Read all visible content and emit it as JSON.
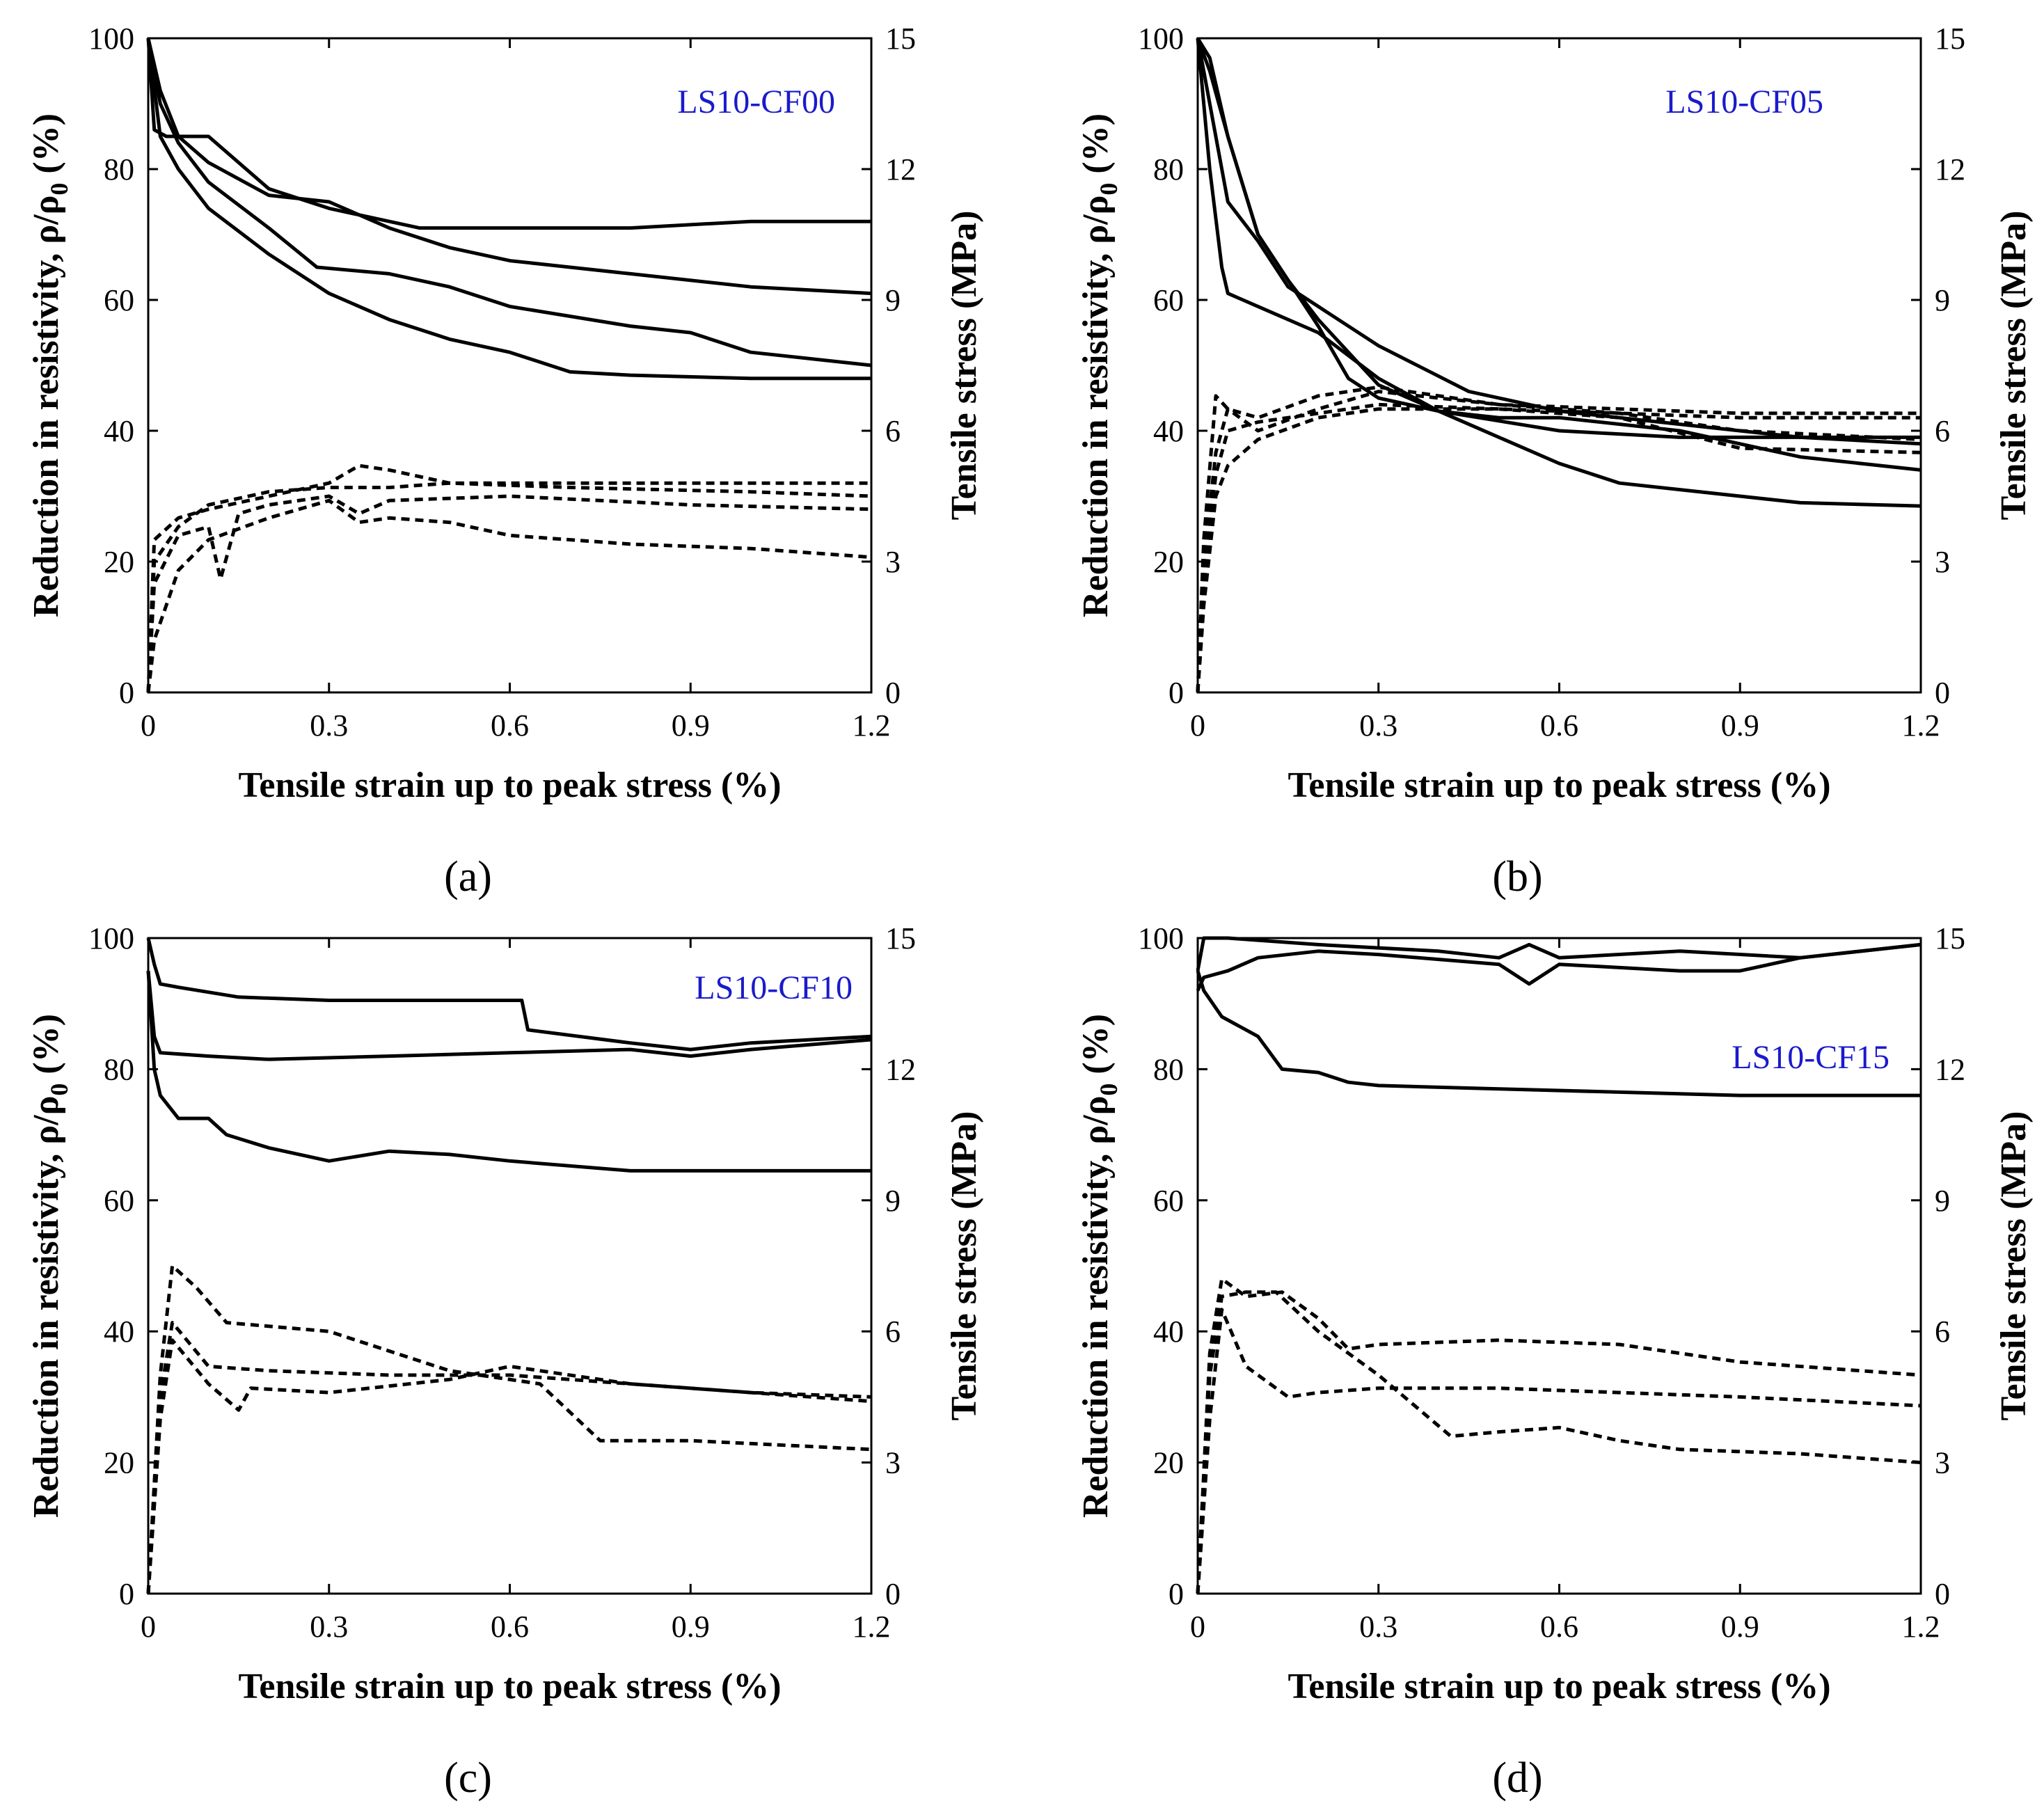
{
  "chart_data": [
    {
      "type": "line",
      "panel_tag": "(a)",
      "specimen_label": "LS10-CF00",
      "xlabel": "Tensile strain up to peak stress (%)",
      "ylabel_left": "Reduction in resistivity, ρ/ρ",
      "ylabel_left_sub": "0",
      "ylabel_left_tail": " (%)",
      "ylabel_right": "Tensile stress (MPa)",
      "xlim": [
        0,
        1.2
      ],
      "ylim_left": [
        0,
        100
      ],
      "ylim_right": [
        0,
        15
      ],
      "xticks": [
        "0",
        "0.3",
        "0.6",
        "0.9",
        "1.2"
      ],
      "yticks_left": [
        "0",
        "20",
        "40",
        "60",
        "80",
        "100"
      ],
      "yticks_right": [
        "0",
        "3",
        "6",
        "9",
        "12",
        "15"
      ],
      "series": [
        {
          "name": "resistivity-1",
          "style": "solid",
          "axis": "left",
          "x": [
            0,
            0.01,
            0.03,
            0.1,
            0.2,
            0.3,
            0.45,
            0.6,
            0.8,
            1.0,
            1.2
          ],
          "y": [
            100,
            86,
            85,
            85,
            77,
            74,
            71,
            71,
            71,
            72,
            72
          ]
        },
        {
          "name": "resistivity-2",
          "style": "solid",
          "axis": "left",
          "x": [
            0,
            0.02,
            0.05,
            0.1,
            0.2,
            0.3,
            0.4,
            0.5,
            0.6,
            0.8,
            1.0,
            1.2
          ],
          "y": [
            100,
            92,
            85,
            81,
            76,
            75,
            71,
            68,
            66,
            64,
            62,
            61
          ]
        },
        {
          "name": "resistivity-3",
          "style": "solid",
          "axis": "left",
          "x": [
            0,
            0.02,
            0.05,
            0.1,
            0.2,
            0.28,
            0.4,
            0.5,
            0.6,
            0.8,
            0.9,
            1.0,
            1.2
          ],
          "y": [
            100,
            90,
            84,
            78,
            71,
            65,
            64,
            62,
            59,
            56,
            55,
            52,
            50
          ]
        },
        {
          "name": "resistivity-4",
          "style": "solid",
          "axis": "left",
          "x": [
            0,
            0.02,
            0.05,
            0.1,
            0.2,
            0.3,
            0.4,
            0.5,
            0.6,
            0.7,
            0.8,
            1.0,
            1.2
          ],
          "y": [
            100,
            85,
            80,
            74,
            67,
            61,
            57,
            54,
            52,
            49,
            48.5,
            48,
            48
          ]
        },
        {
          "name": "stress-1",
          "style": "dash",
          "axis": "right",
          "x": [
            0,
            0.01,
            0.05,
            0.1,
            0.2,
            0.3,
            0.35,
            0.4,
            0.5,
            0.7,
            1.0,
            1.2
          ],
          "y": [
            0,
            3.5,
            4.0,
            4.2,
            4.5,
            4.8,
            5.2,
            5.1,
            4.8,
            4.7,
            4.6,
            4.5
          ]
        },
        {
          "name": "stress-2",
          "style": "dash",
          "axis": "right",
          "x": [
            0,
            0.01,
            0.05,
            0.1,
            0.2,
            0.3,
            0.4,
            0.5,
            0.7,
            1.0,
            1.2
          ],
          "y": [
            0,
            3.0,
            3.8,
            4.3,
            4.6,
            4.7,
            4.7,
            4.8,
            4.8,
            4.8,
            4.8
          ]
        },
        {
          "name": "stress-3",
          "style": "dash",
          "axis": "right",
          "x": [
            0,
            0.01,
            0.05,
            0.1,
            0.12,
            0.15,
            0.2,
            0.3,
            0.35,
            0.4,
            0.6,
            0.9,
            1.2
          ],
          "y": [
            0,
            2.5,
            3.6,
            3.8,
            2.6,
            4.1,
            4.3,
            4.5,
            4.1,
            4.4,
            4.5,
            4.3,
            4.2
          ]
        },
        {
          "name": "stress-4",
          "style": "dash",
          "axis": "right",
          "x": [
            0,
            0.01,
            0.05,
            0.1,
            0.2,
            0.3,
            0.35,
            0.4,
            0.5,
            0.6,
            0.8,
            1.0,
            1.2
          ],
          "y": [
            0,
            1.2,
            2.8,
            3.5,
            4.0,
            4.4,
            3.9,
            4.0,
            3.9,
            3.6,
            3.4,
            3.3,
            3.1
          ]
        }
      ]
    },
    {
      "type": "line",
      "panel_tag": "(b)",
      "specimen_label": "LS10-CF05",
      "xlabel": "Tensile strain up to peak stress (%)",
      "ylabel_left": "Reduction in resistivity, ρ/ρ",
      "ylabel_left_sub": "0",
      "ylabel_left_tail": " (%)",
      "ylabel_right": "Tensile stress (MPa)",
      "xlim": [
        0,
        1.2
      ],
      "ylim_left": [
        0,
        100
      ],
      "ylim_right": [
        0,
        15
      ],
      "xticks": [
        "0",
        "0.3",
        "0.6",
        "0.9",
        "1.2"
      ],
      "yticks_left": [
        "0",
        "20",
        "40",
        "60",
        "80",
        "100"
      ],
      "yticks_right": [
        "0",
        "3",
        "6",
        "9",
        "12",
        "15"
      ],
      "series": [
        {
          "name": "resistivity-1",
          "style": "solid",
          "axis": "left",
          "x": [
            0,
            0.02,
            0.05,
            0.1,
            0.15,
            0.2,
            0.3,
            0.45,
            0.6,
            0.8,
            1.0,
            1.2
          ],
          "y": [
            100,
            90,
            75,
            69,
            62,
            59,
            53,
            46,
            43,
            41,
            39,
            38
          ]
        },
        {
          "name": "resistivity-2",
          "style": "solid",
          "axis": "left",
          "x": [
            0,
            0.02,
            0.04,
            0.05,
            0.1,
            0.2,
            0.3,
            0.4,
            0.6,
            0.8,
            1.0,
            1.2
          ],
          "y": [
            100,
            80,
            65,
            61,
            59,
            55,
            48,
            43,
            40,
            39,
            39,
            39
          ]
        },
        {
          "name": "resistivity-3",
          "style": "solid",
          "axis": "left",
          "x": [
            0,
            0.02,
            0.05,
            0.1,
            0.15,
            0.2,
            0.25,
            0.3,
            0.4,
            0.5,
            0.6,
            0.8,
            1.0,
            1.2
          ],
          "y": [
            100,
            95,
            85,
            70,
            63,
            56,
            48,
            45,
            43,
            42,
            42,
            40,
            36,
            34
          ]
        },
        {
          "name": "resistivity-4",
          "style": "solid",
          "axis": "left",
          "x": [
            0,
            0.02,
            0.05,
            0.1,
            0.15,
            0.2,
            0.25,
            0.3,
            0.4,
            0.5,
            0.6,
            0.7,
            0.8,
            1.0,
            1.2
          ],
          "y": [
            100,
            97,
            85,
            70,
            63,
            57,
            52,
            47,
            43,
            39,
            35,
            32,
            31,
            29,
            28.5
          ]
        },
        {
          "name": "stress-1",
          "style": "dash",
          "axis": "right",
          "x": [
            0,
            0.01,
            0.03,
            0.05,
            0.1,
            0.2,
            0.3,
            0.5,
            0.7,
            0.9,
            1.2
          ],
          "y": [
            0,
            3.5,
            6.8,
            6.5,
            6.3,
            6.8,
            7.0,
            6.6,
            6.5,
            6.4,
            6.4
          ]
        },
        {
          "name": "stress-2",
          "style": "dash",
          "axis": "right",
          "x": [
            0,
            0.01,
            0.03,
            0.05,
            0.1,
            0.2,
            0.3,
            0.5,
            0.7,
            0.9,
            1.2
          ],
          "y": [
            0,
            3.0,
            5.5,
            6.5,
            6.0,
            6.5,
            6.9,
            6.6,
            6.4,
            6.3,
            6.3
          ]
        },
        {
          "name": "stress-3",
          "style": "dash",
          "axis": "right",
          "x": [
            0,
            0.01,
            0.03,
            0.05,
            0.1,
            0.2,
            0.3,
            0.5,
            0.7,
            0.9,
            1.2
          ],
          "y": [
            0,
            2.5,
            5.0,
            6.0,
            6.2,
            6.4,
            6.6,
            6.5,
            6.4,
            6.0,
            5.8
          ]
        },
        {
          "name": "stress-4",
          "style": "dash",
          "axis": "right",
          "x": [
            0,
            0.01,
            0.03,
            0.05,
            0.1,
            0.2,
            0.3,
            0.5,
            0.7,
            0.9,
            1.2
          ],
          "y": [
            0,
            2.0,
            4.5,
            5.2,
            5.8,
            6.3,
            6.5,
            6.5,
            6.3,
            5.6,
            5.5
          ]
        }
      ]
    },
    {
      "type": "line",
      "panel_tag": "(c)",
      "specimen_label": "LS10-CF10",
      "xlabel": "Tensile strain up to peak stress (%)",
      "ylabel_left": "Reduction in resistivity, ρ/ρ",
      "ylabel_left_sub": "0",
      "ylabel_left_tail": " (%)",
      "ylabel_right": "Tensile stress (MPa)",
      "xlim": [
        0,
        1.2
      ],
      "ylim_left": [
        0,
        100
      ],
      "ylim_right": [
        0,
        15
      ],
      "xticks": [
        "0",
        "0.3",
        "0.6",
        "0.9",
        "1.2"
      ],
      "yticks_left": [
        "0",
        "20",
        "40",
        "60",
        "80",
        "100"
      ],
      "yticks_right": [
        "0",
        "3",
        "6",
        "9",
        "12",
        "15"
      ],
      "series": [
        {
          "name": "resistivity-1",
          "style": "solid",
          "axis": "left",
          "x": [
            0,
            0.01,
            0.02,
            0.05,
            0.15,
            0.3,
            0.5,
            0.62,
            0.63,
            0.8,
            0.9,
            1.0,
            1.2
          ],
          "y": [
            100,
            96,
            93,
            92.5,
            91,
            90.5,
            90.5,
            90.5,
            86,
            84,
            83,
            84,
            85
          ]
        },
        {
          "name": "resistivity-2",
          "style": "solid",
          "axis": "left",
          "x": [
            0,
            0.01,
            0.02,
            0.1,
            0.2,
            0.4,
            0.6,
            0.8,
            0.9,
            1.0,
            1.2
          ],
          "y": [
            95,
            85,
            82.5,
            82,
            81.5,
            82,
            82.5,
            83,
            82,
            83,
            84.5
          ]
        },
        {
          "name": "resistivity-3",
          "style": "solid",
          "axis": "left",
          "x": [
            0,
            0.01,
            0.02,
            0.05,
            0.1,
            0.13,
            0.2,
            0.3,
            0.4,
            0.5,
            0.6,
            0.8,
            1.0,
            1.2
          ],
          "y": [
            95,
            80,
            76,
            72.5,
            72.5,
            70,
            68,
            66,
            67.5,
            67,
            66,
            64.5,
            64.5,
            64.5
          ]
        },
        {
          "name": "stress-1",
          "style": "dash",
          "axis": "right",
          "x": [
            0,
            0.02,
            0.04,
            0.08,
            0.13,
            0.3,
            0.5,
            0.65,
            0.75,
            0.9,
            1.2
          ],
          "y": [
            0,
            5.0,
            7.5,
            7.0,
            6.2,
            6.0,
            5.1,
            4.8,
            3.5,
            3.5,
            3.3
          ]
        },
        {
          "name": "stress-2",
          "style": "dash",
          "axis": "right",
          "x": [
            0,
            0.02,
            0.04,
            0.1,
            0.2,
            0.4,
            0.6,
            0.8,
            1.0,
            1.2
          ],
          "y": [
            0,
            4.5,
            6.2,
            5.2,
            5.1,
            5.0,
            5.0,
            4.8,
            4.6,
            4.5
          ]
        },
        {
          "name": "stress-3",
          "style": "dash",
          "axis": "right",
          "x": [
            0,
            0.02,
            0.04,
            0.1,
            0.15,
            0.17,
            0.3,
            0.5,
            0.6,
            0.8,
            1.0,
            1.2
          ],
          "y": [
            0,
            4.0,
            5.8,
            4.8,
            4.2,
            4.7,
            4.6,
            4.9,
            5.2,
            4.8,
            4.6,
            4.4
          ]
        }
      ]
    },
    {
      "type": "line",
      "panel_tag": "(d)",
      "specimen_label": "LS10-CF15",
      "xlabel": "Tensile strain up to peak stress (%)",
      "ylabel_left": "Reduction in resistivity, ρ/ρ",
      "ylabel_left_sub": "0",
      "ylabel_left_tail": " (%)",
      "ylabel_right": "Tensile stress (MPa)",
      "xlim": [
        0,
        1.2
      ],
      "ylim_left": [
        0,
        100
      ],
      "ylim_right": [
        0,
        15
      ],
      "xticks": [
        "0",
        "0.3",
        "0.6",
        "0.9",
        "1.2"
      ],
      "yticks_left": [
        "0",
        "20",
        "40",
        "60",
        "80",
        "100"
      ],
      "yticks_right": [
        "0",
        "3",
        "6",
        "9",
        "12",
        "15"
      ],
      "series": [
        {
          "name": "resistivity-1",
          "style": "solid",
          "axis": "left",
          "x": [
            0,
            0.01,
            0.05,
            0.2,
            0.4,
            0.5,
            0.55,
            0.6,
            0.8,
            1.0,
            1.2
          ],
          "y": [
            95,
            100,
            100,
            99,
            98,
            97,
            99,
            97,
            98,
            97,
            99
          ]
        },
        {
          "name": "resistivity-2",
          "style": "solid",
          "axis": "left",
          "x": [
            0,
            0.01,
            0.05,
            0.1,
            0.2,
            0.3,
            0.5,
            0.55,
            0.6,
            0.8,
            0.9,
            1.0,
            1.2
          ],
          "y": [
            92,
            94,
            95,
            97,
            98,
            97.5,
            96,
            93,
            96,
            95,
            95,
            97,
            99
          ]
        },
        {
          "name": "resistivity-3",
          "style": "solid",
          "axis": "left",
          "x": [
            0,
            0.01,
            0.04,
            0.1,
            0.14,
            0.2,
            0.25,
            0.3,
            0.5,
            0.7,
            0.9,
            1.2
          ],
          "y": [
            95,
            92,
            88,
            85,
            80,
            79.5,
            78,
            77.5,
            77,
            76.5,
            76,
            76
          ]
        },
        {
          "name": "stress-1",
          "style": "dash",
          "axis": "right",
          "x": [
            0,
            0.02,
            0.04,
            0.08,
            0.14,
            0.2,
            0.25,
            0.3,
            0.5,
            0.7,
            0.9,
            1.2
          ],
          "y": [
            0,
            5.5,
            7.2,
            6.8,
            6.9,
            6.3,
            5.6,
            5.7,
            5.8,
            5.7,
            5.3,
            5.0
          ]
        },
        {
          "name": "stress-2",
          "style": "dash",
          "axis": "right",
          "x": [
            0,
            0.02,
            0.04,
            0.08,
            0.13,
            0.2,
            0.3,
            0.42,
            0.5,
            0.6,
            0.7,
            0.8,
            1.0,
            1.2
          ],
          "y": [
            0,
            5.0,
            6.8,
            6.9,
            6.9,
            6.0,
            5.0,
            3.6,
            3.7,
            3.8,
            3.5,
            3.3,
            3.2,
            3.0
          ]
        },
        {
          "name": "stress-3",
          "style": "dash",
          "axis": "right",
          "x": [
            0,
            0.02,
            0.04,
            0.08,
            0.15,
            0.2,
            0.3,
            0.5,
            0.7,
            0.9,
            1.2
          ],
          "y": [
            0,
            4.0,
            6.5,
            5.2,
            4.5,
            4.6,
            4.7,
            4.7,
            4.6,
            4.5,
            4.3
          ]
        }
      ]
    }
  ]
}
